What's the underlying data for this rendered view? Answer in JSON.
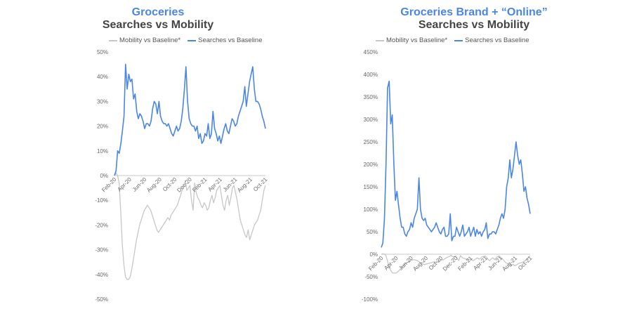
{
  "chart_data": [
    {
      "type": "line",
      "title": "Groceries",
      "subtitle": "Searches vs Mobility",
      "xlabel": "",
      "ylabel": "",
      "ylim": [
        -50,
        50
      ],
      "yticks": [
        "50%",
        "40%",
        "30%",
        "20%",
        "10%",
        "0%",
        "-10%",
        "-20%",
        "-30%",
        "-40%",
        "-50%"
      ],
      "xticks": [
        "Feb-20",
        "Apr-20",
        "Jun-20",
        "Aug-20",
        "Oct-20",
        "Dec-20",
        "Feb-21",
        "Apr-21",
        "Jun-21",
        "Aug-21",
        "Oct-21"
      ],
      "legend_position": "top",
      "series": [
        {
          "name": "Mobility vs Baseline*",
          "color": "#c7c7c7",
          "values": [
            0,
            1,
            0,
            -3,
            -15,
            -28,
            -36,
            -41,
            -42,
            -42,
            -41,
            -38,
            -34,
            -30,
            -26,
            -23,
            -20,
            -18,
            -16,
            -14,
            -13,
            -12,
            -13,
            -14,
            -16,
            -18,
            -20,
            -22,
            -23,
            -22,
            -21,
            -20,
            -19,
            -18,
            -17,
            -18,
            -16,
            -15,
            -14,
            -13,
            -12,
            -10,
            -8,
            -6,
            -5,
            -2,
            -6,
            -5,
            -4,
            -10,
            -14,
            -3,
            -7,
            -9,
            -10,
            -12,
            -13,
            -11,
            -12,
            -14,
            -13,
            -10,
            -8,
            -11,
            -9,
            -6,
            -5,
            -4,
            -8,
            -12,
            -14,
            -10,
            -8,
            -12,
            -9,
            -5,
            -4,
            -7,
            -10,
            -14,
            -18,
            -20,
            -22,
            -24,
            -25,
            -22,
            -26,
            -24,
            -22,
            -20,
            -19,
            -18,
            -16,
            -14,
            -10,
            -6,
            -4
          ]
        },
        {
          "name": "Searches vs Baseline",
          "color": "#4a86e8",
          "values": [
            0,
            2,
            10,
            9,
            13,
            18,
            24,
            45,
            35,
            41,
            38,
            39,
            31,
            33,
            26,
            23,
            25,
            24,
            22,
            19,
            21,
            21,
            20,
            22,
            27,
            30,
            29,
            25,
            30,
            24,
            22,
            21,
            21,
            20,
            21,
            19,
            17,
            16,
            18,
            20,
            18,
            19,
            22,
            27,
            35,
            44,
            30,
            23,
            21,
            20,
            20,
            18,
            20,
            15,
            17,
            13,
            14,
            17,
            16,
            21,
            15,
            17,
            26,
            19,
            17,
            14,
            16,
            13,
            16,
            19,
            21,
            18,
            17,
            20,
            23,
            22,
            20,
            21,
            24,
            26,
            28,
            30,
            36,
            28,
            33,
            38,
            41,
            44,
            35,
            30,
            30,
            29,
            27,
            24,
            22,
            19
          ]
        }
      ]
    },
    {
      "type": "line",
      "title": "Groceries Brand + “Online”",
      "subtitle": "Searches vs Mobility",
      "xlabel": "",
      "ylabel": "",
      "ylim": [
        -100,
        450
      ],
      "yticks": [
        "450%",
        "400%",
        "350%",
        "300%",
        "250%",
        "200%",
        "150%",
        "100%",
        "50%",
        "0%",
        "-50%",
        "-100%"
      ],
      "xticks": [
        "Feb-20",
        "Apr-20",
        "Jun-20",
        "Aug-20",
        "Oct-20",
        "Dec-20",
        "Feb-21",
        "Apr-21",
        "Jun-21",
        "Aug-21",
        "Oct-21"
      ],
      "legend_position": "top",
      "series": [
        {
          "name": "Mobility vs Baseline*",
          "color": "#c7c7c7",
          "values": [
            0,
            1,
            0,
            -3,
            -15,
            -28,
            -36,
            -41,
            -42,
            -42,
            -41,
            -38,
            -34,
            -30,
            -26,
            -23,
            -20,
            -18,
            -16,
            -14,
            -13,
            -12,
            -13,
            -14,
            -16,
            -18,
            -20,
            -22,
            -23,
            -22,
            -21,
            -20,
            -19,
            -18,
            -17,
            -18,
            -16,
            -15,
            -14,
            -13,
            -12,
            -10,
            -8,
            -6,
            -5,
            -2,
            -6,
            -5,
            -4,
            -10,
            -14,
            -3,
            -7,
            -9,
            -10,
            -12,
            -13,
            -11,
            -12,
            -14,
            -13,
            -10,
            -8,
            -11,
            -9,
            -6,
            -5,
            -4,
            -8,
            -12,
            -14,
            -10,
            -8,
            -12,
            -9,
            -5,
            -4,
            -7,
            -10,
            -14,
            -18,
            -20,
            -22,
            -24,
            -25,
            -22,
            -26,
            -24,
            -22,
            -20,
            -19,
            -18,
            -16,
            -14,
            -10,
            -6,
            -4
          ]
        },
        {
          "name": "Searches vs Baseline",
          "color": "#4a86e8",
          "values": [
            15,
            25,
            80,
            200,
            370,
            385,
            290,
            310,
            200,
            120,
            140,
            110,
            80,
            60,
            60,
            45,
            40,
            50,
            55,
            70,
            60,
            80,
            90,
            100,
            170,
            100,
            80,
            75,
            80,
            65,
            60,
            55,
            50,
            55,
            60,
            70,
            60,
            50,
            45,
            55,
            60,
            40,
            40,
            45,
            90,
            30,
            40,
            40,
            60,
            50,
            40,
            50,
            65,
            40,
            45,
            50,
            60,
            40,
            50,
            60,
            40,
            55,
            45,
            50,
            40,
            50,
            55,
            70,
            35,
            45,
            45,
            50,
            50,
            45,
            55,
            65,
            80,
            90,
            80,
            100,
            150,
            170,
            210,
            170,
            190,
            220,
            250,
            220,
            200,
            210,
            180,
            140,
            150,
            125,
            110,
            90
          ]
        }
      ]
    }
  ]
}
